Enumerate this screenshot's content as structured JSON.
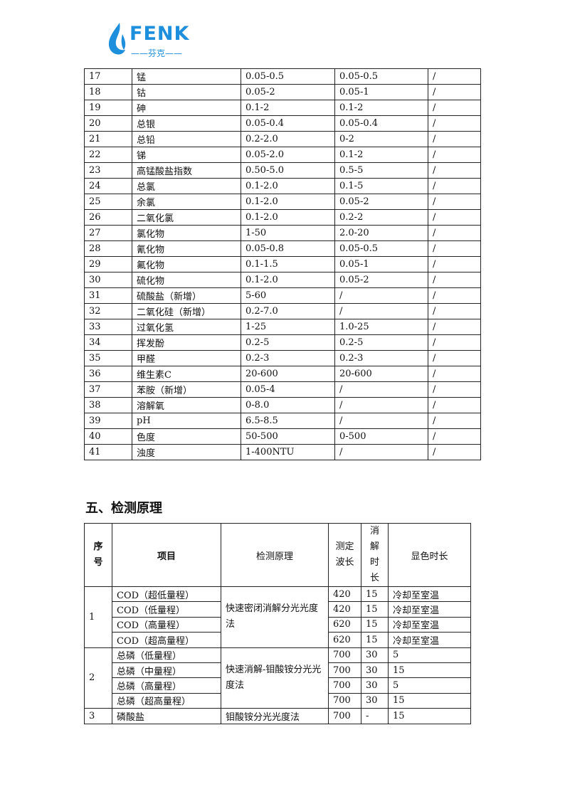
{
  "logo": {
    "brand": "FENK",
    "sub": "——芬克——",
    "color": "#1e8fdc"
  },
  "table1": {
    "rows": [
      [
        "17",
        "锰",
        "0.05-0.5",
        "0.05-0.5",
        "/"
      ],
      [
        "18",
        "钴",
        "0.05-2",
        "0.05-1",
        "/"
      ],
      [
        "19",
        "砷",
        "0.1-2",
        "0.1-2",
        "/"
      ],
      [
        "20",
        "总银",
        "0.05-0.4",
        "0.05-0.4",
        "/"
      ],
      [
        "21",
        "总铅",
        "0.2-2.0",
        "0-2",
        "/"
      ],
      [
        "22",
        "锑",
        "0.05-2.0",
        "0.1-2",
        "/"
      ],
      [
        "23",
        "高锰酸盐指数",
        "0.50-5.0",
        "0.5-5",
        "/"
      ],
      [
        "24",
        "总氯",
        "0.1-2.0",
        "0.1-5",
        "/"
      ],
      [
        "25",
        "余氯",
        "0.1-2.0",
        "0.05-2",
        "/"
      ],
      [
        "26",
        "二氧化氯",
        "0.1-2.0",
        "0.2-2",
        "/"
      ],
      [
        "27",
        "氯化物",
        "1-50",
        "2.0-20",
        "/"
      ],
      [
        "28",
        "氰化物",
        "0.05-0.8",
        "0.05-0.5",
        "/"
      ],
      [
        "29",
        "氟化物",
        "0.1-1.5",
        "0.05-1",
        "/"
      ],
      [
        "30",
        "硫化物",
        "0.1-2.0",
        "0.05-2",
        "/"
      ],
      [
        "31",
        "硫酸盐（新增）",
        "5-60",
        "/",
        "/"
      ],
      [
        "32",
        "二氧化硅（新增）",
        "0.2-7.0",
        "/",
        "/"
      ],
      [
        "33",
        "过氧化氢",
        "1-25",
        "1.0-25",
        "/"
      ],
      [
        "34",
        "挥发酚",
        "0.2-5",
        "0.2-5",
        "/"
      ],
      [
        "35",
        "甲醛",
        "0.2-3",
        "0.2-3",
        "/"
      ],
      [
        "36",
        "维生素C",
        "20-600",
        "20-600",
        "/"
      ],
      [
        "37",
        "苯胺（新增）",
        "0.05-4",
        "/",
        "/"
      ],
      [
        "38",
        "溶解氧",
        "0-8.0",
        "/",
        "/"
      ],
      [
        "39",
        "pH",
        "6.5-8.5",
        "/",
        "/"
      ],
      [
        "40",
        "色度",
        "50-500",
        "0-500",
        "/"
      ],
      [
        "41",
        "浊度",
        "1-400NTU",
        "/",
        "/"
      ]
    ]
  },
  "section_title": "五、检测原理",
  "table2": {
    "headers": [
      "序号",
      "项目",
      "检测原理",
      "测定波长",
      "消解时长",
      "显色时长"
    ],
    "groups": [
      {
        "no": "1",
        "principle": "快速密闭消解分光光度法",
        "items": [
          [
            "COD（超低量程）",
            "420",
            "15",
            "冷却至室温"
          ],
          [
            "COD（低量程）",
            "420",
            "15",
            "冷却至室温"
          ],
          [
            "COD（高量程）",
            "620",
            "15",
            "冷却至室温"
          ],
          [
            "COD（超高量程）",
            "620",
            "15",
            "冷却至室温"
          ]
        ]
      },
      {
        "no": "2",
        "principle": "快速消解-钼酸铵分光光度法",
        "items": [
          [
            "总磷（低量程）",
            "700",
            "30",
            "5"
          ],
          [
            "总磷（中量程）",
            "700",
            "30",
            "15"
          ],
          [
            "总磷（高量程）",
            "700",
            "30",
            "5"
          ],
          [
            "总磷（超高量程）",
            "700",
            "30",
            "15"
          ]
        ]
      },
      {
        "no": "3",
        "principle": "钼酸铵分光光度法",
        "items": [
          [
            "磷酸盐",
            "700",
            "-",
            "15"
          ]
        ]
      }
    ]
  }
}
